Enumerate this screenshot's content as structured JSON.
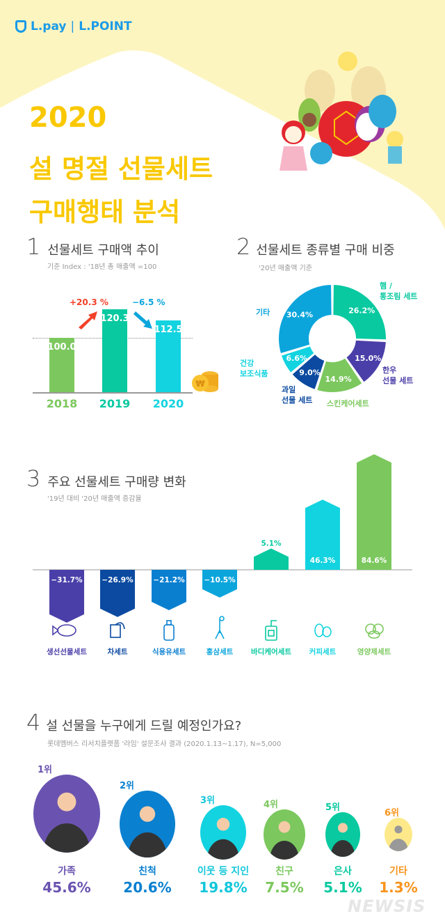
{
  "header": {
    "logo_left": "L.pay",
    "logo_right": "L.POINT",
    "year": "2020",
    "title_line1": "설 명절 선물세트",
    "title_line2": "구매행태 분석",
    "bg_color": "#fdf5c0",
    "title_color": "#f9c800"
  },
  "chart_data": [
    {
      "type": "bar",
      "number": "1",
      "title": "선물세트 구매액 추이",
      "subtitle": "기준 Index : '18년 총 매출액 =100",
      "categories": [
        "2018",
        "2019",
        "2020"
      ],
      "values": [
        100.0,
        120.3,
        112.5
      ],
      "value_labels": [
        "100.0",
        "120.3",
        "112.5"
      ],
      "colors": [
        "#7cc85e",
        "#08c9a0",
        "#13d3e0"
      ],
      "reference_line": 100,
      "annotations": [
        {
          "text": "+20.3 %",
          "color": "#f2412a",
          "direction": "up"
        },
        {
          "text": "−6.5 %",
          "color": "#0ba5dc",
          "direction": "down"
        }
      ]
    },
    {
      "type": "pie",
      "donut": true,
      "number": "2",
      "title": "선물세트 종류별 구매 비중",
      "subtitle": "'20년 매출액 기준",
      "slices": [
        {
          "label": "햄 / 통조림 세트",
          "label_lines": [
            "햄 /",
            "통조림 세트"
          ],
          "value": 26.2,
          "value_label": "26.2%",
          "color": "#08c9a0"
        },
        {
          "label": "한우 선물 세트",
          "label_lines": [
            "한우",
            "선물 세트"
          ],
          "value": 15.0,
          "value_label": "15.0%",
          "color": "#4a3fa8"
        },
        {
          "label": "스킨케어세트",
          "label_lines": [
            "스킨케어세트"
          ],
          "value": 14.9,
          "value_label": "14.9%",
          "color": "#7cc85e"
        },
        {
          "label": "과일 선물 세트",
          "label_lines": [
            "과일",
            "선물 세트"
          ],
          "value": 9.0,
          "value_label": "9.0%",
          "color": "#0b4aa0"
        },
        {
          "label": "건강 보조식품",
          "label_lines": [
            "건강",
            "보조식품"
          ],
          "value": 6.6,
          "value_label": "6.6%",
          "color": "#13d3e0"
        },
        {
          "label": "기타",
          "label_lines": [
            "기타"
          ],
          "value": 30.4,
          "value_label": "30.4%",
          "color": "#0ba5dc"
        }
      ]
    },
    {
      "type": "bar",
      "number": "3",
      "title": "주요 선물세트 구매량 변화",
      "subtitle": "'19년 대비 '20년 매출액 증감율",
      "categories": [
        "생선선물세트",
        "차세트",
        "식용유세트",
        "홍삼세트",
        "바디케어세트",
        "커피세트",
        "영양제세트"
      ],
      "values": [
        -31.7,
        -26.9,
        -21.2,
        -10.5,
        5.1,
        46.3,
        84.6
      ],
      "value_labels": [
        "−31.7%",
        "−26.9%",
        "−21.2%",
        "−10.5%",
        "5.1%",
        "46.3%",
        "84.6%"
      ],
      "colors": [
        "#4a3fa8",
        "#0b4aa0",
        "#0a7fd0",
        "#0ba5dc",
        "#08c9a0",
        "#13d3e0",
        "#7cc85e"
      ],
      "icons": [
        "fish-icon",
        "tea-bag-icon",
        "oil-bottle-icon",
        "ginseng-icon",
        "pump-bottle-icon",
        "coffee-bean-icon",
        "pill-icon"
      ]
    },
    {
      "type": "table",
      "number": "4",
      "title": "설 선물을 누구에게 드릴 예정인가요?",
      "subtitle": "롯데멤버스 리서치플랫폼 '라임' 설문조사  결과 (2020.1.13~1.17), N=5,000",
      "rows": [
        {
          "rank": "1위",
          "name": "가족",
          "value": 45.6,
          "value_label": "45.6%",
          "color": "#6a53b0"
        },
        {
          "rank": "2위",
          "name": "친척",
          "value": 20.6,
          "value_label": "20.6%",
          "color": "#0a80d0"
        },
        {
          "rank": "3위",
          "name": "이웃 등 지인",
          "value": 19.8,
          "value_label": "19.8%",
          "color": "#13c7db"
        },
        {
          "rank": "4위",
          "name": "친구",
          "value": 7.5,
          "value_label": "7.5%",
          "color": "#7cc85e"
        },
        {
          "rank": "5위",
          "name": "은사",
          "value": 5.1,
          "value_label": "5.1%",
          "color": "#08c9a0"
        },
        {
          "rank": "6위",
          "name": "기타",
          "value": 1.3,
          "value_label": "1.3%",
          "color": "#f7941d"
        }
      ]
    }
  ],
  "watermark": "NEWSIS"
}
